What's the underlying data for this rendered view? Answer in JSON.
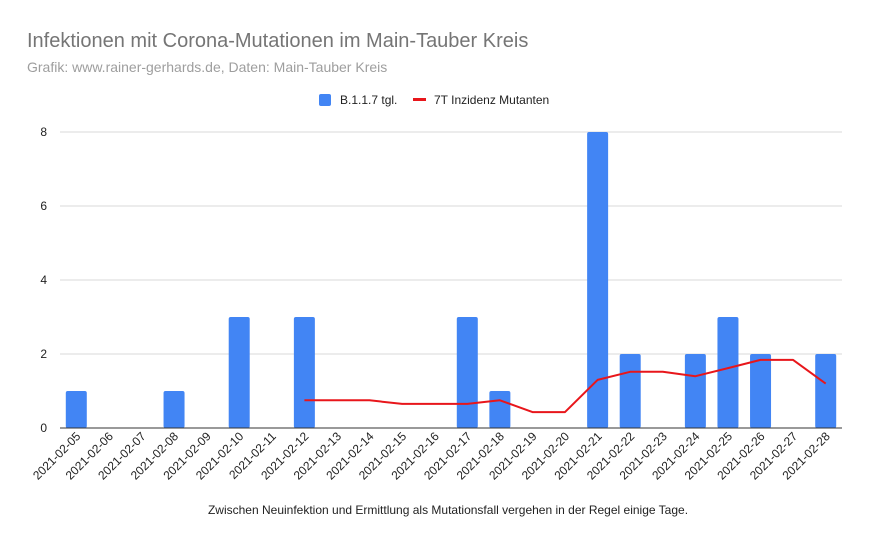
{
  "chart_data": {
    "type": "bar",
    "title": "Infektionen mit Corona-Mutationen im Main-Tauber Kreis",
    "subtitle": "Grafik: www.rainer-gerhards.de, Daten: Main-Tauber Kreis",
    "footnote": "Zwischen Neuinfektion und Ermittlung als Mutationsfall vergehen in der Regel einige Tage.",
    "categories": [
      "2021-02-05",
      "2021-02-06",
      "2021-02-07",
      "2021-02-08",
      "2021-02-09",
      "2021-02-10",
      "2021-02-11",
      "2021-02-12",
      "2021-02-13",
      "2021-02-14",
      "2021-02-15",
      "2021-02-16",
      "2021-02-17",
      "2021-02-18",
      "2021-02-19",
      "2021-02-20",
      "2021-02-21",
      "2021-02-22",
      "2021-02-23",
      "2021-02-24",
      "2021-02-25",
      "2021-02-26",
      "2021-02-27",
      "2021-02-28"
    ],
    "series": [
      {
        "name": "B.1.1.7 tgl.",
        "type": "bar",
        "color": "#4285f4",
        "values": [
          1,
          0,
          0,
          1,
          0,
          3,
          0,
          3,
          0,
          0,
          0,
          0,
          3,
          1,
          0,
          0,
          8,
          2,
          0,
          2,
          3,
          2,
          0,
          2
        ]
      },
      {
        "name": "7T Inzidenz Mutanten",
        "type": "line",
        "color": "#e8161b",
        "values": [
          null,
          null,
          null,
          null,
          null,
          null,
          null,
          0.75,
          0.75,
          0.75,
          0.65,
          0.65,
          0.65,
          0.75,
          0.43,
          0.43,
          1.3,
          1.52,
          1.52,
          1.4,
          1.62,
          1.84,
          1.84,
          1.2
        ]
      }
    ],
    "yticks": [
      0,
      2,
      4,
      6,
      8
    ],
    "ylim": [
      0,
      8
    ],
    "grid": true,
    "legend_position": "top-center"
  }
}
